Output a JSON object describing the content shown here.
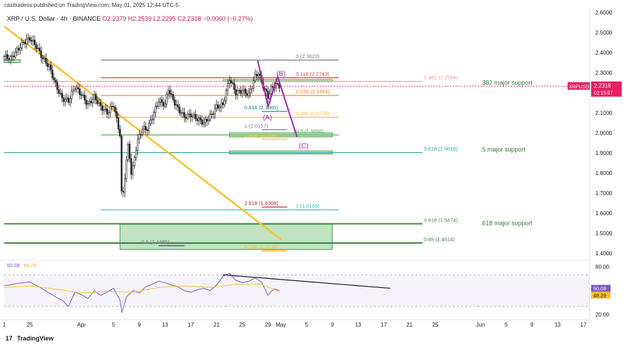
{
  "header": {
    "published": "casitradess published on TradingView.com, May 01, 2025 12:44 UTC-5",
    "symbol": "XRP / U.S. Dollar · 4h · BINANCE",
    "ohlc": "O2.2379 H2.2539 L2.2295 C2.2318 −0.0060 (−0.27%)"
  },
  "footer": {
    "brand": "TradingView",
    "logo": "tradingview-logo"
  },
  "price_tag": {
    "ticker": "XRPUSD",
    "price": "2.2318",
    "countdown": "02:15:07",
    "color": "#e91e63"
  },
  "chart_data": {
    "type": "candlestick",
    "y_axis": {
      "min": 1.38,
      "max": 2.62,
      "ticks": [
        "2.6000",
        "2.5000",
        "2.4000",
        "2.3000",
        "2.2000",
        "2.1000",
        "2.0000",
        "1.9000",
        "1.8000",
        "1.7000",
        "1.6000",
        "1.5000",
        "1.4000"
      ]
    },
    "x_axis": {
      "ticks": [
        {
          "t": 0,
          "label": "1"
        },
        {
          "t": 4,
          "label": "25"
        },
        {
          "t": 12,
          "label": "Apr"
        },
        {
          "t": 17,
          "label": "5"
        },
        {
          "t": 21,
          "label": "9"
        },
        {
          "t": 25,
          "label": "13"
        },
        {
          "t": 29,
          "label": "17"
        },
        {
          "t": 33,
          "label": "21"
        },
        {
          "t": 37,
          "label": "25"
        },
        {
          "t": 41,
          "label": "29"
        },
        {
          "t": 43,
          "label": "May"
        },
        {
          "t": 47,
          "label": "5"
        },
        {
          "t": 51,
          "label": "9"
        },
        {
          "t": 55,
          "label": "13"
        },
        {
          "t": 59,
          "label": "17"
        },
        {
          "t": 63,
          "label": "21"
        },
        {
          "t": 67,
          "label": "25"
        },
        {
          "t": 74,
          "label": "Jun"
        },
        {
          "t": 78,
          "label": "5"
        },
        {
          "t": 82,
          "label": "9"
        },
        {
          "t": 86,
          "label": "13"
        },
        {
          "t": 90,
          "label": "17"
        }
      ]
    },
    "price_path": [
      [
        0,
        2.38
      ],
      [
        1,
        2.37
      ],
      [
        2,
        2.41
      ],
      [
        3,
        2.45
      ],
      [
        4,
        2.47
      ],
      [
        5,
        2.43
      ],
      [
        6,
        2.37
      ],
      [
        7,
        2.33
      ],
      [
        8,
        2.24
      ],
      [
        9,
        2.17
      ],
      [
        10,
        2.16
      ],
      [
        11,
        2.23
      ],
      [
        12,
        2.19
      ],
      [
        13,
        2.14
      ],
      [
        14,
        2.18
      ],
      [
        15,
        2.13
      ],
      [
        16,
        2.1
      ],
      [
        17,
        2.14
      ],
      [
        18,
        1.99
      ],
      [
        18.3,
        1.64
      ],
      [
        18.8,
        1.8
      ],
      [
        19.3,
        1.95
      ],
      [
        19.8,
        1.78
      ],
      [
        20.3,
        1.89
      ],
      [
        20.8,
        1.97
      ],
      [
        21.5,
        2.02
      ],
      [
        22.3,
        2.02
      ],
      [
        23,
        2.08
      ],
      [
        24,
        2.16
      ],
      [
        25,
        2.14
      ],
      [
        25.5,
        2.22
      ],
      [
        26,
        2.18
      ],
      [
        27,
        2.12
      ],
      [
        28,
        2.08
      ],
      [
        29,
        2.09
      ],
      [
        30,
        2.07
      ],
      [
        31,
        2.05
      ],
      [
        32,
        2.08
      ],
      [
        33,
        2.13
      ],
      [
        34,
        2.14
      ],
      [
        35,
        2.27
      ],
      [
        36,
        2.2
      ],
      [
        37,
        2.21
      ],
      [
        38,
        2.19
      ],
      [
        39,
        2.28
      ],
      [
        39.5,
        2.3
      ],
      [
        40,
        2.25
      ],
      [
        41,
        2.18
      ],
      [
        41.5,
        2.22
      ],
      [
        42.2,
        2.24
      ],
      [
        42.8,
        2.2318
      ]
    ],
    "horizontal_levels": [
      {
        "label": "0 (2.3622)",
        "price": 2.3622,
        "color": "#787b86",
        "t1": 15,
        "t2": 52
      },
      {
        "label": "0.118 (2.2743)",
        "price": 2.2743,
        "color": "#e53935",
        "t1": 15,
        "t2": 52
      },
      {
        "label": "0.236 (2.1863)",
        "price": 2.1863,
        "color": "#f57c00",
        "t1": 15,
        "t2": 52
      },
      {
        "label": "0.382 (2.0775)",
        "price": 2.0775,
        "color": "#fbc02d",
        "t1": 15,
        "t2": 52
      },
      {
        "label": "0.5 (1.9896)",
        "price": 1.9896,
        "color": "#4caf50",
        "t1": 15,
        "t2": 52
      },
      {
        "label": "0.618 (1.9016)",
        "price": 1.9016,
        "color": "#26a69a",
        "t1": 0,
        "t2": 65
      },
      {
        "label": "1 (1.6169)",
        "price": 1.6169,
        "color": "#26c6da",
        "t1": 15,
        "t2": 52
      },
      {
        "label": "0.382 (2.2559)",
        "price": 2.2559,
        "color": "#ef9a9a",
        "t1": 0,
        "t2": 65
      },
      {
        "label": "0.618 (1.5474)",
        "price": 1.5474,
        "color": "#388e3c",
        "t1": 0,
        "t2": 65
      },
      {
        "label": "0.65 (1.4514)",
        "price": 1.4514,
        "color": "#2e7d32",
        "t1": 0,
        "t2": 65
      },
      {
        "label": "0.618 (2.1065)",
        "price": 2.1065,
        "color": "#00897b",
        "t1": 40,
        "t2": 44
      },
      {
        "label": "1 (2.0157)",
        "price": 2.0157,
        "color": "#787b86",
        "t1": 40,
        "t2": 44
      },
      {
        "label": "2.618 (1.6308)",
        "price": 1.6308,
        "color": "#b71c1c",
        "t1": 40,
        "t2": 44
      },
      {
        "label": "1.618 (1.9685)",
        "price": 1.9685,
        "color": "#fbc02d",
        "t1": 40,
        "t2": 44
      },
      {
        "label": "4.236 (1.4130)",
        "price": 1.413,
        "color": "#fbc02d",
        "t1": 40,
        "t2": 44
      },
      {
        "label": "0.5 (1.4385)",
        "price": 1.4385,
        "color": "#787b86",
        "t1": 24,
        "t2": 28
      }
    ],
    "annotations": [
      {
        "text": ".382 major support",
        "t": 74,
        "price": 2.24,
        "color": "#2e7d32"
      },
      {
        "text": ".5 major support",
        "t": 74,
        "price": 1.907,
        "color": "#2e7d32"
      },
      {
        "text": ".618 major support",
        "t": 74,
        "price": 1.54,
        "color": "#2e7d32"
      }
    ],
    "wave_labels": [
      {
        "text": "(B)",
        "t": 42.3,
        "price": 2.285,
        "color": "#9c27b0"
      },
      {
        "text": "(A)",
        "t": 40.2,
        "price": 2.065,
        "color": "#9c27b0"
      },
      {
        "text": "(C)",
        "t": 45.8,
        "price": 1.925,
        "color": "#9c27b0"
      }
    ],
    "wave_path": [
      [
        39.4,
        2.36
      ],
      [
        41,
        2.13
      ],
      [
        42.5,
        2.28
      ],
      [
        45.5,
        1.98
      ]
    ],
    "trendline": [
      [
        0,
        2.53
      ],
      [
        43,
        1.47
      ]
    ],
    "zones": [
      {
        "t1": 35,
        "t2": 51,
        "p1": 1.98,
        "p2": 2.0
      },
      {
        "t1": 35,
        "t2": 51,
        "p1": 1.895,
        "p2": 1.91
      },
      {
        "t1": 18,
        "t2": 51,
        "p1": 1.42,
        "p2": 1.545
      },
      {
        "t1": 34,
        "t2": 51,
        "p1": 2.255,
        "p2": 2.265
      },
      {
        "t1": 0,
        "t2": 2.5,
        "p1": 2.35,
        "p2": 2.365
      }
    ],
    "rsi": {
      "value": "50.08",
      "ma_value": "48.29",
      "ticks": [
        "80.00",
        "20.00"
      ],
      "band": [
        30,
        70
      ],
      "min": 15,
      "max": 85,
      "path": [
        [
          0,
          56
        ],
        [
          2,
          59
        ],
        [
          4,
          61
        ],
        [
          6,
          52
        ],
        [
          8,
          42
        ],
        [
          9,
          38
        ],
        [
          10,
          30
        ],
        [
          11,
          48
        ],
        [
          12,
          45
        ],
        [
          13,
          40
        ],
        [
          14,
          50
        ],
        [
          15,
          44
        ],
        [
          16,
          48
        ],
        [
          17,
          53
        ],
        [
          18,
          38
        ],
        [
          18.3,
          22
        ],
        [
          19,
          42
        ],
        [
          20,
          50
        ],
        [
          21,
          47
        ],
        [
          22,
          55
        ],
        [
          23,
          58
        ],
        [
          24,
          62
        ],
        [
          25,
          60
        ],
        [
          26,
          57
        ],
        [
          27,
          55
        ],
        [
          28,
          50
        ],
        [
          29,
          48
        ],
        [
          30,
          51
        ],
        [
          31,
          53
        ],
        [
          32,
          50
        ],
        [
          33,
          57
        ],
        [
          34,
          68
        ],
        [
          35,
          72
        ],
        [
          36,
          63
        ],
        [
          37,
          60
        ],
        [
          38,
          62
        ],
        [
          39,
          66
        ],
        [
          40,
          61
        ],
        [
          41,
          44
        ],
        [
          41.5,
          49
        ],
        [
          42,
          52
        ],
        [
          42.8,
          50.08
        ]
      ],
      "ma_path": [
        [
          0,
          54
        ],
        [
          4,
          56
        ],
        [
          8,
          52
        ],
        [
          12,
          47
        ],
        [
          16,
          49
        ],
        [
          20,
          48
        ],
        [
          24,
          54
        ],
        [
          28,
          56
        ],
        [
          32,
          54
        ],
        [
          36,
          58
        ],
        [
          40,
          58
        ],
        [
          42.8,
          48.29
        ]
      ],
      "trendline": [
        [
          34,
          70
        ],
        [
          60,
          53
        ]
      ]
    }
  }
}
